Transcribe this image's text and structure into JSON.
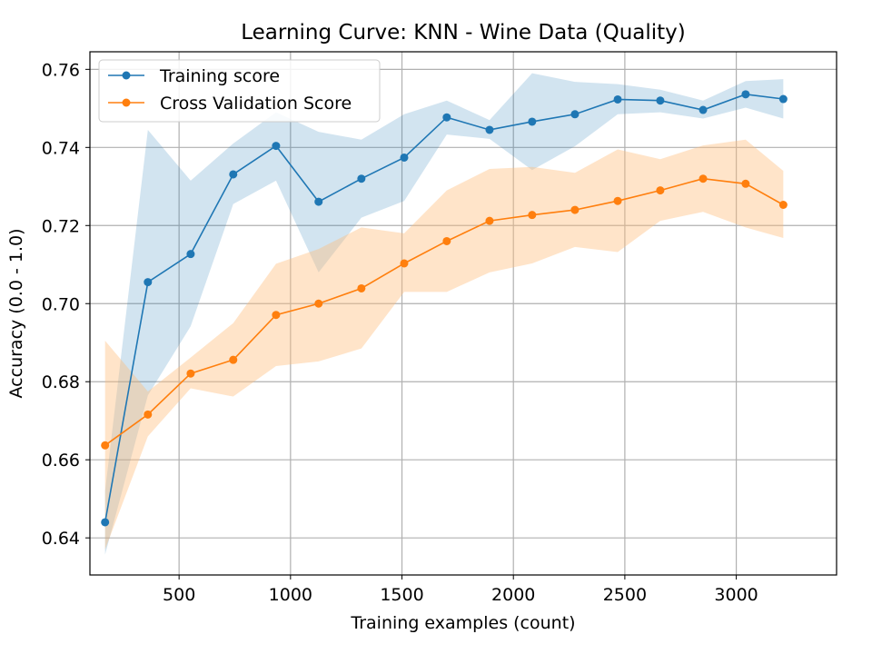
{
  "chart_data": {
    "type": "line",
    "title": "Learning Curve: KNN - Wine Data (Quality)",
    "xlabel": "Training examples (count)",
    "ylabel": "Accuracy (0.0 - 1.0)",
    "xlim": [
      100,
      3450
    ],
    "ylim": [
      0.6305,
      0.7645
    ],
    "xticks": [
      500,
      1000,
      1500,
      2000,
      2500,
      3000
    ],
    "xtick_labels": [
      "500",
      "1000",
      "1500",
      "2000",
      "2500",
      "3000"
    ],
    "yticks": [
      0.64,
      0.66,
      0.68,
      0.7,
      0.72,
      0.74,
      0.76
    ],
    "ytick_labels": [
      "0.64",
      "0.66",
      "0.68",
      "0.70",
      "0.72",
      "0.74",
      "0.76"
    ],
    "grid": true,
    "legend_position": "top-left",
    "x": [
      168,
      360,
      552,
      743,
      935,
      1126,
      1318,
      1510,
      1701,
      1893,
      2084,
      2276,
      2468,
      2659,
      2851,
      3042,
      3211
    ],
    "series": [
      {
        "name": "Training score",
        "color": "#1f77b4",
        "band_color": "#1f77b4",
        "values": [
          0.644,
          0.7055,
          0.7127,
          0.7331,
          0.7404,
          0.7261,
          0.732,
          0.7374,
          0.7477,
          0.7445,
          0.7466,
          0.7485,
          0.7523,
          0.752,
          0.7496,
          0.7536,
          0.7524
        ],
        "upper": [
          0.652,
          0.7445,
          0.7315,
          0.741,
          0.749,
          0.744,
          0.742,
          0.7485,
          0.752,
          0.747,
          0.759,
          0.7568,
          0.7562,
          0.7548,
          0.752,
          0.757,
          0.7575
        ],
        "lower": [
          0.6357,
          0.6765,
          0.6942,
          0.7255,
          0.7315,
          0.708,
          0.722,
          0.7263,
          0.7433,
          0.7422,
          0.7342,
          0.7403,
          0.7485,
          0.749,
          0.7474,
          0.7502,
          0.7474
        ]
      },
      {
        "name": "Cross Validation Score",
        "color": "#ff7f0e",
        "band_color": "#ffbb78",
        "values": [
          0.6637,
          0.6716,
          0.6821,
          0.6856,
          0.6971,
          0.7,
          0.7039,
          0.7103,
          0.716,
          0.7212,
          0.7227,
          0.724,
          0.7263,
          0.729,
          0.732,
          0.7307,
          0.7253
        ],
        "upper": [
          0.6905,
          0.6775,
          0.6862,
          0.695,
          0.7102,
          0.714,
          0.7195,
          0.718,
          0.729,
          0.7345,
          0.735,
          0.7335,
          0.7395,
          0.737,
          0.7405,
          0.742,
          0.734
        ],
        "lower": [
          0.637,
          0.666,
          0.6783,
          0.6762,
          0.684,
          0.6852,
          0.6885,
          0.703,
          0.703,
          0.708,
          0.7103,
          0.7145,
          0.7132,
          0.7212,
          0.7235,
          0.7195,
          0.7168
        ]
      }
    ]
  }
}
